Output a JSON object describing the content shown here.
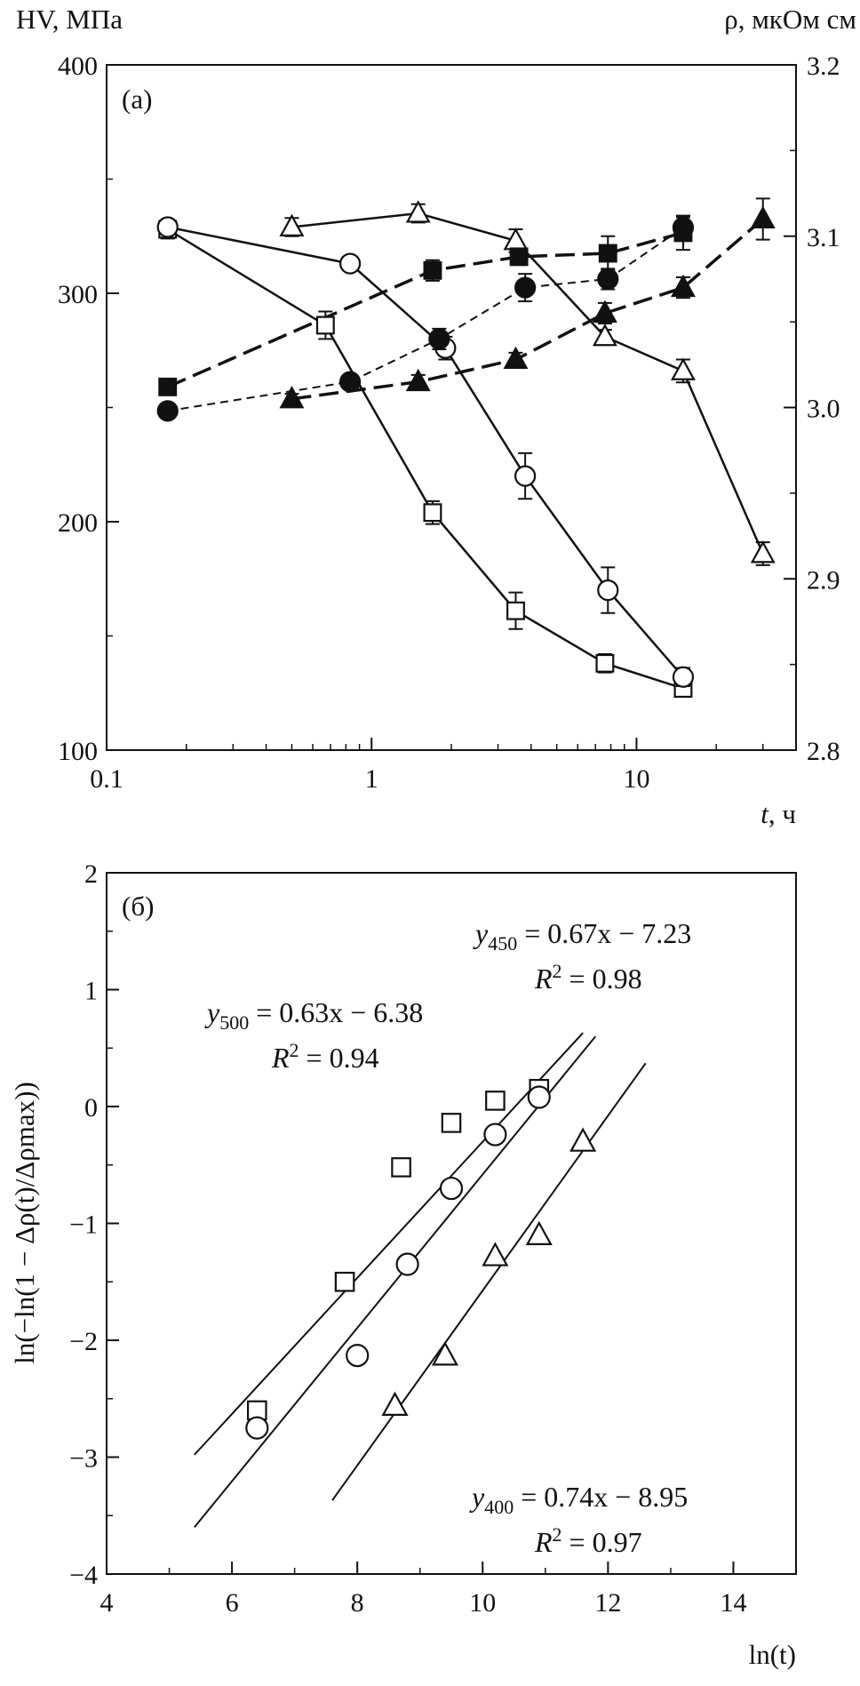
{
  "chart_data": [
    {
      "panel_label": "(a)",
      "type": "scatter",
      "x_scale": "log",
      "xlim": [
        0.1,
        40
      ],
      "ylim_left": [
        100,
        400
      ],
      "ylim_right": [
        2.8,
        3.2
      ],
      "x_ticks": [
        0.1,
        1,
        10
      ],
      "x_tick_labels": [
        "0.1",
        "1",
        "10"
      ],
      "y_left_ticks": [
        100,
        200,
        300,
        400
      ],
      "y_left_tick_labels": [
        "100",
        "200",
        "300",
        "400"
      ],
      "y_right_ticks": [
        2.8,
        2.9,
        3.0,
        3.1,
        3.2
      ],
      "y_right_tick_labels": [
        "2.8",
        "2.9",
        "3.0",
        "3.1",
        "3.2"
      ],
      "ylabel_left": "HV, МПа",
      "ylabel_right": "ρ, мкОм см",
      "xlabel_var": "t",
      "xlabel_unit": ", ч",
      "series": [
        {
          "axis": "left",
          "marker": "open-square",
          "line": "solid",
          "width": 2.5,
          "x": [
            0.17,
            0.67,
            1.7,
            3.5,
            7.6,
            15
          ],
          "y": [
            328,
            286,
            204,
            161,
            138,
            127
          ],
          "err": [
            4,
            6,
            5,
            8,
            4,
            3
          ]
        },
        {
          "axis": "left",
          "marker": "open-circle",
          "line": "solid",
          "width": 2.5,
          "x": [
            0.17,
            0.83,
            1.9,
            3.8,
            7.8,
            15
          ],
          "y": [
            329,
            313,
            276,
            220,
            170,
            132
          ],
          "err": [
            3,
            3,
            5,
            10,
            10,
            4
          ]
        },
        {
          "axis": "left",
          "marker": "open-triangle",
          "line": "solid",
          "width": 2.5,
          "x": [
            0.5,
            1.5,
            3.5,
            7.6,
            15,
            30
          ],
          "y": [
            329,
            335,
            323,
            281,
            266,
            186
          ],
          "err": [
            4,
            4,
            5,
            3,
            5,
            5
          ]
        },
        {
          "axis": "right",
          "marker": "filled-square",
          "line": "dashed",
          "width": 3.5,
          "x": [
            0.17,
            1.7,
            3.6,
            7.8,
            15
          ],
          "y": [
            3.012,
            3.08,
            3.088,
            3.09,
            3.102
          ],
          "err": [
            0.003,
            0.006,
            0.004,
            0.01,
            0.01
          ]
        },
        {
          "axis": "right",
          "marker": "filled-circle",
          "line": "dashed-fine",
          "width": 2,
          "x": [
            0.17,
            0.83,
            1.8,
            3.8,
            7.8,
            15
          ],
          "y": [
            2.998,
            3.015,
            3.04,
            3.07,
            3.075,
            3.105
          ],
          "err": [
            0.003,
            0.003,
            0.006,
            0.008,
            0.006,
            0.006
          ]
        },
        {
          "axis": "right",
          "marker": "filled-triangle",
          "line": "dashed",
          "width": 3.5,
          "x": [
            0.5,
            1.5,
            3.5,
            7.6,
            15,
            30
          ],
          "y": [
            3.005,
            3.015,
            3.028,
            3.055,
            3.07,
            3.11
          ],
          "err": [
            0.003,
            0.004,
            0.004,
            0.006,
            0.006,
            0.012
          ]
        }
      ]
    },
    {
      "panel_label": "(б)",
      "type": "scatter",
      "xlim": [
        4,
        15
      ],
      "ylim": [
        -4,
        2
      ],
      "x_ticks": [
        4,
        6,
        8,
        10,
        12,
        14
      ],
      "x_tick_labels": [
        "4",
        "6",
        "8",
        "10",
        "12",
        "14"
      ],
      "y_ticks": [
        -4,
        -3,
        -2,
        -1,
        0,
        1,
        2
      ],
      "y_tick_labels": [
        "−4",
        "−3",
        "−2",
        "−1",
        "0",
        "1",
        "2"
      ],
      "ylabel": "ln(−ln(1 − Δρ(t)/Δρmax))",
      "xlabel": "ln(t)",
      "series": [
        {
          "marker": "open-square",
          "x": [
            6.4,
            7.8,
            8.7,
            9.5,
            10.2,
            10.9
          ],
          "y": [
            -2.6,
            -1.5,
            -0.52,
            -0.14,
            0.05,
            0.15
          ]
        },
        {
          "marker": "open-circle",
          "x": [
            6.4,
            8.0,
            8.8,
            9.5,
            10.2,
            10.9
          ],
          "y": [
            -2.75,
            -2.13,
            -1.35,
            -0.7,
            -0.24,
            0.08
          ]
        },
        {
          "marker": "open-triangle",
          "x": [
            8.6,
            9.4,
            10.2,
            10.9,
            11.6
          ],
          "y": [
            -2.56,
            -2.13,
            -1.28,
            -1.1,
            -0.3
          ]
        }
      ],
      "fit_lines": [
        {
          "x": [
            5.4,
            11.6
          ],
          "y": [
            -2.98,
            0.63
          ]
        },
        {
          "x": [
            5.4,
            11.8
          ],
          "y": [
            -3.6,
            0.6
          ]
        },
        {
          "x": [
            7.6,
            12.6
          ],
          "y": [
            -3.37,
            0.37
          ]
        }
      ],
      "annotations": [
        {
          "var": "y",
          "sub": "450",
          "eq": " = 0.67x − 7.23",
          "r2": " = 0.98"
        },
        {
          "var": "y",
          "sub": "500",
          "eq": " = 0.63x − 6.38",
          "r2": " = 0.94"
        },
        {
          "var": "y",
          "sub": "400",
          "eq": " = 0.74x − 8.95",
          "r2": " = 0.97"
        }
      ]
    }
  ]
}
